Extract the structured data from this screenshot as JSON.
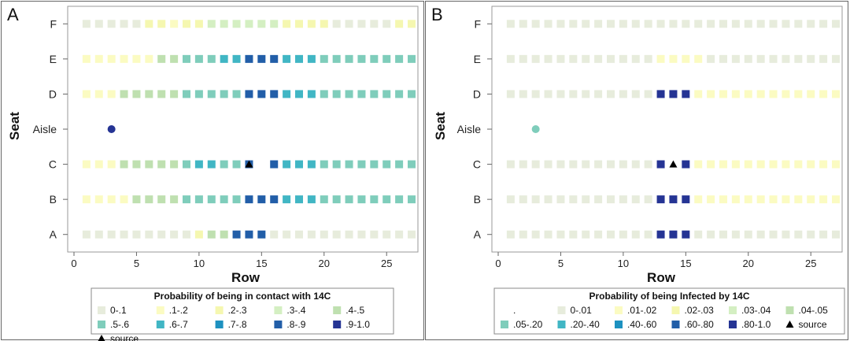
{
  "chart_data": [
    {
      "type": "heatmap",
      "panel": "A",
      "title": "",
      "xlabel": "Row",
      "ylabel": "Seat",
      "xlim": [
        0,
        27
      ],
      "xticks": [
        "0",
        "5",
        "10",
        "15",
        "20",
        "25"
      ],
      "seats": [
        "F",
        "E",
        "D",
        "Aisle",
        "C",
        "B",
        "A"
      ],
      "legend_title": "Probability of being in contact with 14C",
      "legend": [
        {
          "label": "0-.1",
          "color": "#e7ecdc",
          "marker": "square"
        },
        {
          "label": ".1-.2",
          "color": "#fbfbc2",
          "marker": "square"
        },
        {
          "label": ".2-.3",
          "color": "#f5f7b0",
          "marker": "square"
        },
        {
          "label": ".3-.4",
          "color": "#d4efc2",
          "marker": "square"
        },
        {
          "label": ".4-.5",
          "color": "#bfe0b0",
          "marker": "square"
        },
        {
          "label": ".5-.6",
          "color": "#7fcdbb",
          "marker": "square"
        },
        {
          "label": ".6-.7",
          "color": "#41b6c4",
          "marker": "square"
        },
        {
          "label": ".7-.8",
          "color": "#1d91c0",
          "marker": "square"
        },
        {
          "label": ".8-.9",
          "color": "#225ea8",
          "marker": "square"
        },
        {
          "label": ".9-1.0",
          "color": "#253494",
          "marker": "square"
        },
        {
          "label": "source",
          "color": "#000000",
          "marker": "triangle"
        }
      ],
      "cells": {
        "F": [
          "#e7ecdc",
          "#e7ecdc",
          "#e7ecdc",
          "#e7ecdc",
          "#e7ecdc",
          "#f5f7b0",
          "#f5f7b0",
          "#fbfbc2",
          "#f5f7b0",
          "#f5f7b0",
          "#d4efc2",
          "#d4efc2",
          "#d4efc2",
          "#d4efc2",
          "#d4efc2",
          "#d4efc2",
          "#f5f7b0",
          "#f5f7b0",
          "#f5f7b0",
          "#f5f7b0",
          "#e7ecdc",
          "#e7ecdc",
          "#e7ecdc",
          "#e7ecdc",
          "#e7ecdc",
          "#f5f7b0",
          "#f5f7b0"
        ],
        "E": [
          "#fbfbc2",
          "#fbfbc2",
          "#fbfbc2",
          "#fbfbc2",
          "#fbfbc2",
          "#fbfbc2",
          "#bfe0b0",
          "#bfe0b0",
          "#7fcdbb",
          "#7fcdbb",
          "#7fcdbb",
          "#41b6c4",
          "#41b6c4",
          "#225ea8",
          "#225ea8",
          "#225ea8",
          "#41b6c4",
          "#41b6c4",
          "#41b6c4",
          "#7fcdbb",
          "#7fcdbb",
          "#7fcdbb",
          "#7fcdbb",
          "#7fcdbb",
          "#7fcdbb",
          "#7fcdbb",
          "#7fcdbb"
        ],
        "D": [
          "#fbfbc2",
          "#fbfbc2",
          "#fbfbc2",
          "#bfe0b0",
          "#bfe0b0",
          "#bfe0b0",
          "#bfe0b0",
          "#bfe0b0",
          "#7fcdbb",
          "#7fcdbb",
          "#7fcdbb",
          "#7fcdbb",
          "#7fcdbb",
          "#225ea8",
          "#225ea8",
          "#225ea8",
          "#41b6c4",
          "#41b6c4",
          "#41b6c4",
          "#7fcdbb",
          "#7fcdbb",
          "#7fcdbb",
          "#7fcdbb",
          "#7fcdbb",
          "#7fcdbb",
          "#7fcdbb",
          "#7fcdbb"
        ],
        "C": [
          "#fbfbc2",
          "#fbfbc2",
          "#fbfbc2",
          "#bfe0b0",
          "#bfe0b0",
          "#bfe0b0",
          "#bfe0b0",
          "#bfe0b0",
          "#7fcdbb",
          "#41b6c4",
          "#41b6c4",
          "#7fcdbb",
          "#7fcdbb",
          "#225ea8",
          "null",
          "#225ea8",
          "#41b6c4",
          "#41b6c4",
          "#41b6c4",
          "#7fcdbb",
          "#7fcdbb",
          "#7fcdbb",
          "#7fcdbb",
          "#7fcdbb",
          "#7fcdbb",
          "#7fcdbb",
          "#7fcdbb"
        ],
        "B": [
          "#fbfbc2",
          "#fbfbc2",
          "#fbfbc2",
          "#fbfbc2",
          "#bfe0b0",
          "#bfe0b0",
          "#bfe0b0",
          "#bfe0b0",
          "#7fcdbb",
          "#7fcdbb",
          "#7fcdbb",
          "#7fcdbb",
          "#7fcdbb",
          "#225ea8",
          "#225ea8",
          "#225ea8",
          "#41b6c4",
          "#41b6c4",
          "#41b6c4",
          "#7fcdbb",
          "#7fcdbb",
          "#7fcdbb",
          "#7fcdbb",
          "#7fcdbb",
          "#7fcdbb",
          "#7fcdbb",
          "#7fcdbb"
        ],
        "A": [
          "#e7ecdc",
          "#e7ecdc",
          "#e7ecdc",
          "#e7ecdc",
          "#e7ecdc",
          "#e7ecdc",
          "#e7ecdc",
          "#e7ecdc",
          "#e7ecdc",
          "#f5f7b0",
          "#bfe0b0",
          "#bfe0b0",
          "#225ea8",
          "#225ea8",
          "#225ea8",
          "#e7ecdc",
          "#e7ecdc",
          "#e7ecdc",
          "#e7ecdc",
          "#e7ecdc",
          "#e7ecdc",
          "#e7ecdc",
          "#e7ecdc",
          "#e7ecdc",
          "#e7ecdc",
          "#e7ecdc",
          "#e7ecdc"
        ]
      },
      "aisle_point": {
        "row": 3,
        "color": "#253494"
      },
      "source": {
        "row": 14,
        "seat": "C"
      }
    },
    {
      "type": "heatmap",
      "panel": "B",
      "title": "",
      "xlabel": "Row",
      "ylabel": "Seat",
      "xlim": [
        0,
        27
      ],
      "xticks": [
        "0",
        "5",
        "10",
        "15",
        "20",
        "25"
      ],
      "seats": [
        "F",
        "E",
        "D",
        "Aisle",
        "C",
        "B",
        "A"
      ],
      "legend_title": "Probability of being Infected by 14C",
      "legend": [
        {
          "label": ".",
          "color": "#ffffff",
          "marker": "none"
        },
        {
          "label": "0-.01",
          "color": "#e7ecdc",
          "marker": "square"
        },
        {
          "label": ".01-.02",
          "color": "#fbfbc2",
          "marker": "square"
        },
        {
          "label": ".02-.03",
          "color": "#f5f7b0",
          "marker": "square"
        },
        {
          "label": ".03-.04",
          "color": "#d4efc2",
          "marker": "square"
        },
        {
          "label": ".04-.05",
          "color": "#bfe0b0",
          "marker": "square"
        },
        {
          "label": ".05-.20",
          "color": "#7fcdbb",
          "marker": "square"
        },
        {
          "label": ".20-.40",
          "color": "#41b6c4",
          "marker": "square"
        },
        {
          "label": ".40-.60",
          "color": "#1d91c0",
          "marker": "square"
        },
        {
          "label": ".60-.80",
          "color": "#225ea8",
          "marker": "square"
        },
        {
          "label": ".80-1.0",
          "color": "#253494",
          "marker": "square"
        },
        {
          "label": "source",
          "color": "#000000",
          "marker": "triangle"
        }
      ],
      "cells": {
        "F": [
          "#e7ecdc",
          "#e7ecdc",
          "#e7ecdc",
          "#e7ecdc",
          "#e7ecdc",
          "#e7ecdc",
          "#e7ecdc",
          "#e7ecdc",
          "#e7ecdc",
          "#e7ecdc",
          "#e7ecdc",
          "#e7ecdc",
          "#e7ecdc",
          "#e7ecdc",
          "#e7ecdc",
          "#e7ecdc",
          "#e7ecdc",
          "#e7ecdc",
          "#e7ecdc",
          "#e7ecdc",
          "#e7ecdc",
          "#e7ecdc",
          "#e7ecdc",
          "#e7ecdc",
          "#e7ecdc",
          "#e7ecdc",
          "#e7ecdc"
        ],
        "E": [
          "#e7ecdc",
          "#e7ecdc",
          "#e7ecdc",
          "#e7ecdc",
          "#e7ecdc",
          "#e7ecdc",
          "#e7ecdc",
          "#e7ecdc",
          "#e7ecdc",
          "#e7ecdc",
          "#e7ecdc",
          "#e7ecdc",
          "#fbfbc2",
          "#fbfbc2",
          "#fbfbc2",
          "#fbfbc2",
          "#e7ecdc",
          "#e7ecdc",
          "#e7ecdc",
          "#e7ecdc",
          "#e7ecdc",
          "#e7ecdc",
          "#e7ecdc",
          "#e7ecdc",
          "#e7ecdc",
          "#e7ecdc",
          "#e7ecdc"
        ],
        "D": [
          "#e7ecdc",
          "#e7ecdc",
          "#e7ecdc",
          "#e7ecdc",
          "#e7ecdc",
          "#e7ecdc",
          "#e7ecdc",
          "#e7ecdc",
          "#e7ecdc",
          "#e7ecdc",
          "#e7ecdc",
          "#e7ecdc",
          "#253494",
          "#253494",
          "#253494",
          "#fbfbc2",
          "#fbfbc2",
          "#fbfbc2",
          "#fbfbc2",
          "#fbfbc2",
          "#fbfbc2",
          "#fbfbc2",
          "#fbfbc2",
          "#fbfbc2",
          "#fbfbc2",
          "#fbfbc2",
          "#fbfbc2"
        ],
        "C": [
          "#e7ecdc",
          "#e7ecdc",
          "#e7ecdc",
          "#e7ecdc",
          "#e7ecdc",
          "#e7ecdc",
          "#e7ecdc",
          "#e7ecdc",
          "#e7ecdc",
          "#e7ecdc",
          "#e7ecdc",
          "#e7ecdc",
          "#253494",
          "null",
          "#253494",
          "#fbfbc2",
          "#fbfbc2",
          "#fbfbc2",
          "#fbfbc2",
          "#fbfbc2",
          "#fbfbc2",
          "#fbfbc2",
          "#fbfbc2",
          "#fbfbc2",
          "#fbfbc2",
          "#fbfbc2",
          "#fbfbc2"
        ],
        "B": [
          "#e7ecdc",
          "#e7ecdc",
          "#e7ecdc",
          "#e7ecdc",
          "#e7ecdc",
          "#e7ecdc",
          "#e7ecdc",
          "#e7ecdc",
          "#e7ecdc",
          "#e7ecdc",
          "#e7ecdc",
          "#e7ecdc",
          "#253494",
          "#253494",
          "#253494",
          "#fbfbc2",
          "#fbfbc2",
          "#fbfbc2",
          "#fbfbc2",
          "#fbfbc2",
          "#fbfbc2",
          "#fbfbc2",
          "#fbfbc2",
          "#fbfbc2",
          "#fbfbc2",
          "#fbfbc2",
          "#fbfbc2"
        ],
        "A": [
          "#e7ecdc",
          "#e7ecdc",
          "#e7ecdc",
          "#e7ecdc",
          "#e7ecdc",
          "#e7ecdc",
          "#e7ecdc",
          "#e7ecdc",
          "#e7ecdc",
          "#e7ecdc",
          "#e7ecdc",
          "#e7ecdc",
          "#253494",
          "#253494",
          "#253494",
          "#e7ecdc",
          "#e7ecdc",
          "#e7ecdc",
          "#e7ecdc",
          "#e7ecdc",
          "#e7ecdc",
          "#e7ecdc",
          "#e7ecdc",
          "#e7ecdc",
          "#e7ecdc",
          "#e7ecdc",
          "#e7ecdc"
        ]
      },
      "aisle_point": {
        "row": 3,
        "color": "#7fcdbb"
      },
      "source": {
        "row": 14,
        "seat": "C"
      }
    }
  ]
}
